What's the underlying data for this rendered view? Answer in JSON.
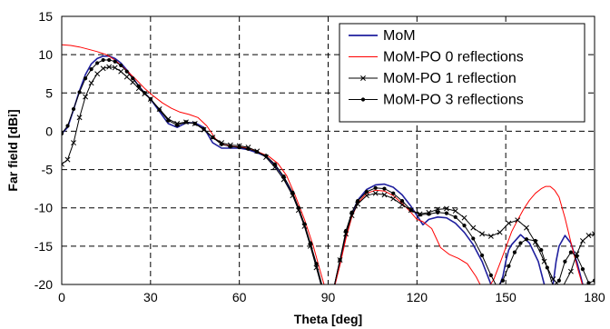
{
  "chart_data": {
    "type": "line",
    "xlabel": "Theta [deg]",
    "ylabel": "Far field [dBi]",
    "xlim": [
      0,
      180
    ],
    "ylim": [
      -20,
      15
    ],
    "xticks": [
      0,
      30,
      60,
      90,
      120,
      150,
      180
    ],
    "yticks": [
      15,
      10,
      5,
      0,
      -5,
      -10,
      -15,
      -20
    ],
    "grid": true,
    "legend_position": "top-right",
    "series": [
      {
        "name": "MoM",
        "color": "#1f1f9e",
        "marker": "none",
        "x": [
          0,
          2,
          4,
          6,
          8,
          10,
          12,
          14,
          16,
          18,
          20,
          22,
          24,
          26,
          28,
          30,
          33,
          36,
          39,
          42,
          45,
          48,
          51,
          54,
          57,
          60,
          63,
          66,
          69,
          72,
          75,
          78,
          80,
          82,
          84,
          86,
          88,
          89,
          90.5,
          92,
          94,
          96,
          98,
          100,
          103,
          106,
          109,
          112,
          115,
          118,
          120,
          122,
          124,
          127,
          130,
          133,
          136,
          139,
          142,
          145,
          147,
          149,
          150,
          151,
          152,
          155,
          158,
          161,
          163,
          164.5,
          166,
          167,
          168,
          170,
          172,
          174,
          176,
          178,
          180
        ],
        "y": [
          -0.3,
          0.5,
          2.8,
          5.3,
          7.4,
          8.8,
          9.5,
          9.8,
          9.8,
          9.5,
          8.9,
          8.0,
          7.0,
          5.9,
          5.0,
          4.2,
          2.6,
          1.0,
          0.5,
          1.1,
          1.1,
          0.5,
          -1.5,
          -2.2,
          -2.2,
          -2.2,
          -2.4,
          -2.8,
          -3.3,
          -4.4,
          -6.0,
          -8.2,
          -10.2,
          -12.3,
          -14.8,
          -17.5,
          -20.5,
          -22.0,
          -22.0,
          -20.5,
          -17.0,
          -13.5,
          -10.8,
          -9.0,
          -7.6,
          -7.0,
          -6.9,
          -7.3,
          -8.3,
          -9.8,
          -11.0,
          -12.2,
          -11.5,
          -11.2,
          -11.3,
          -12.0,
          -13.2,
          -14.8,
          -17.0,
          -20.0,
          -21.0,
          -19.0,
          -17.0,
          -15.5,
          -14.8,
          -13.5,
          -14.6,
          -17.0,
          -20.0,
          -22.0,
          -20.0,
          -17.0,
          -15.0,
          -13.6,
          -14.6,
          -17.0,
          -20.0,
          -21.5,
          -21.5
        ]
      },
      {
        "name": "MoM-PO 0 reflections",
        "color": "#ff0000",
        "marker": "none",
        "x": [
          0,
          3,
          6,
          9,
          12,
          15,
          18,
          20,
          22,
          25,
          28,
          31,
          34,
          37,
          40,
          43,
          46,
          49,
          52,
          55,
          58,
          61,
          64,
          67,
          70,
          73,
          76,
          79,
          82,
          85,
          87,
          89,
          90.5,
          92,
          94,
          96,
          98,
          100,
          103,
          106,
          109,
          112,
          115,
          118,
          120,
          122,
          125,
          128,
          131,
          134,
          137,
          140,
          142,
          144,
          146,
          148,
          150,
          152,
          154,
          156,
          158,
          160,
          162,
          163.5,
          165,
          166.5,
          168,
          170,
          172,
          174,
          176,
          178,
          180
        ],
        "y": [
          11.3,
          11.2,
          11.0,
          10.7,
          10.4,
          10.0,
          9.3,
          8.6,
          7.9,
          6.8,
          5.6,
          4.6,
          3.7,
          3.0,
          2.5,
          2.2,
          1.8,
          0.7,
          -1.0,
          -1.8,
          -2.0,
          -2.1,
          -2.3,
          -2.8,
          -3.3,
          -4.2,
          -5.8,
          -8.5,
          -11.5,
          -15.0,
          -17.8,
          -20.5,
          -21.5,
          -20.5,
          -17.5,
          -14.0,
          -11.2,
          -9.4,
          -8.1,
          -7.7,
          -7.8,
          -8.4,
          -9.4,
          -10.6,
          -11.5,
          -11.8,
          -12.7,
          -15.2,
          -16.1,
          -16.6,
          -17.3,
          -19.0,
          -20.5,
          -20.5,
          -19.3,
          -17.3,
          -15.2,
          -13.1,
          -11.6,
          -10.2,
          -9.0,
          -8.1,
          -7.5,
          -7.2,
          -7.2,
          -7.7,
          -8.6,
          -11.3,
          -14.5,
          -17.5,
          -20.2,
          -21.5,
          -21.5
        ]
      },
      {
        "name": "MoM-PO 1 reflection",
        "color": "#000000",
        "marker": "x",
        "x": [
          0,
          2,
          4,
          6,
          8,
          10,
          12,
          14,
          16,
          18,
          20,
          22,
          24,
          26,
          28,
          30,
          33,
          36,
          39,
          42,
          45,
          48,
          51,
          54,
          57,
          60,
          63,
          66,
          69,
          72,
          75,
          78,
          80,
          82,
          84,
          86,
          88,
          89,
          90.5,
          92,
          94,
          96,
          98,
          100,
          103,
          106,
          109,
          112,
          115,
          118,
          121,
          124,
          127,
          130,
          133,
          136,
          139,
          142,
          145,
          148,
          151,
          154,
          157,
          160,
          163,
          166,
          169,
          172,
          174,
          176,
          178,
          180
        ],
        "y": [
          -4.3,
          -3.7,
          -1.5,
          1.8,
          4.5,
          6.3,
          7.5,
          8.2,
          8.4,
          8.3,
          7.8,
          7.1,
          6.4,
          5.6,
          4.9,
          4.2,
          2.9,
          1.6,
          1.0,
          1.2,
          1.0,
          0.2,
          -0.8,
          -1.5,
          -1.8,
          -1.9,
          -2.1,
          -2.6,
          -3.4,
          -4.7,
          -6.3,
          -8.4,
          -10.3,
          -12.4,
          -15.0,
          -17.8,
          -20.6,
          -22.0,
          -22.0,
          -20.3,
          -16.8,
          -13.4,
          -11.0,
          -9.5,
          -8.4,
          -8.1,
          -8.3,
          -8.8,
          -9.6,
          -10.3,
          -10.8,
          -10.6,
          -10.2,
          -10.1,
          -10.4,
          -11.3,
          -12.6,
          -13.4,
          -13.7,
          -13.2,
          -12.0,
          -11.6,
          -12.6,
          -14.5,
          -17.0,
          -19.3,
          -20.5,
          -18.3,
          -16.0,
          -14.3,
          -13.6,
          -13.4
        ]
      },
      {
        "name": "MoM-PO 3 reflections",
        "color": "#000000",
        "marker": "dot",
        "x": [
          0,
          2,
          4,
          6,
          8,
          10,
          12,
          14,
          16,
          18,
          20,
          22,
          24,
          26,
          28,
          30,
          33,
          36,
          39,
          42,
          45,
          48,
          51,
          54,
          57,
          60,
          63,
          66,
          69,
          72,
          75,
          78,
          80,
          82,
          84,
          86,
          88,
          89,
          90.5,
          92,
          94,
          96,
          98,
          100,
          103,
          106,
          109,
          112,
          115,
          118,
          121,
          124,
          127,
          130,
          133,
          136,
          139,
          142,
          145,
          147,
          149,
          151,
          153,
          155,
          157,
          160,
          162,
          164,
          166,
          168,
          170,
          172,
          174,
          176,
          178,
          180
        ],
        "y": [
          -0.3,
          0.7,
          2.9,
          5.1,
          6.9,
          8.1,
          8.9,
          9.3,
          9.3,
          9.1,
          8.6,
          7.8,
          6.9,
          5.9,
          5.0,
          4.2,
          2.8,
          1.4,
          0.8,
          1.2,
          1.0,
          0.3,
          -0.8,
          -1.7,
          -2.0,
          -2.1,
          -2.3,
          -2.7,
          -3.2,
          -4.3,
          -5.9,
          -8.0,
          -10.0,
          -12.1,
          -14.6,
          -17.3,
          -20.2,
          -22.0,
          -22.0,
          -20.3,
          -16.8,
          -13.0,
          -10.6,
          -9.1,
          -7.9,
          -7.4,
          -7.5,
          -8.1,
          -9.1,
          -10.3,
          -10.9,
          -10.8,
          -10.6,
          -10.7,
          -11.2,
          -12.3,
          -14.0,
          -16.2,
          -18.8,
          -20.3,
          -19.5,
          -17.6,
          -15.8,
          -14.6,
          -14.1,
          -14.3,
          -15.5,
          -17.8,
          -20.2,
          -19.5,
          -17.0,
          -15.8,
          -16.3,
          -18.0,
          -19.8,
          -19.5
        ]
      }
    ]
  }
}
